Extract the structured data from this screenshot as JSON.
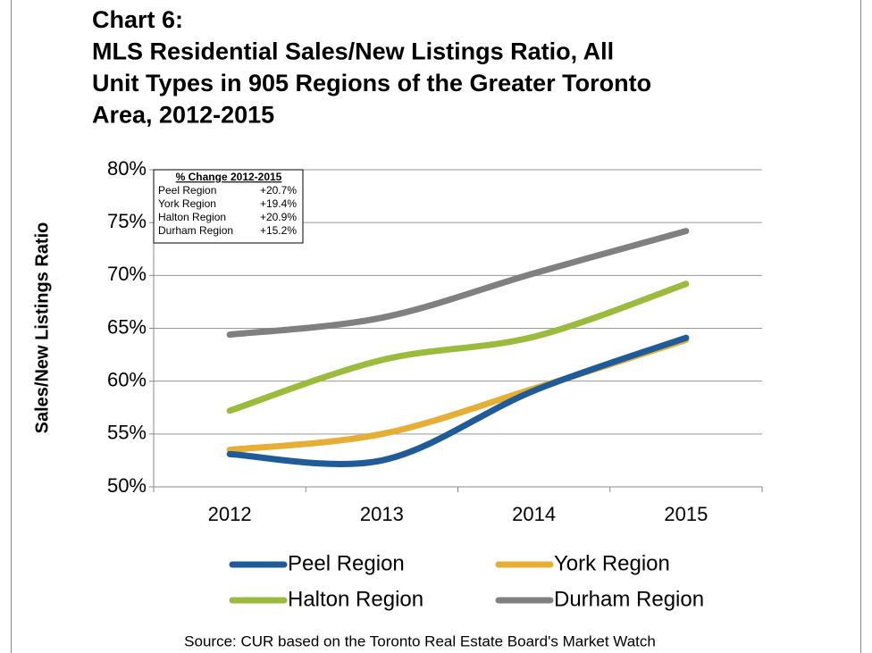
{
  "chart_data": {
    "type": "line",
    "title": [
      "Chart 6:",
      "MLS Residential Sales/New Listings Ratio, All",
      "Unit Types in 905 Regions of the Greater Toronto",
      "Area, 2012-2015"
    ],
    "y_label": "Sales/New Listings Ratio",
    "source": "Source: CUR based on the Toronto Real Estate Board's Market Watch",
    "categories": [
      "2012",
      "2013",
      "2014",
      "2015"
    ],
    "series": [
      {
        "name": "Peel Region",
        "color": "#1f5b99",
        "values": [
          53.1,
          52.5,
          59.1,
          64.1
        ]
      },
      {
        "name": "York Region",
        "color": "#e6ae35",
        "values": [
          53.5,
          55.0,
          59.3,
          63.9
        ]
      },
      {
        "name": "Halton Region",
        "color": "#9bbb3c",
        "values": [
          57.2,
          62.0,
          64.2,
          69.2
        ]
      },
      {
        "name": "Durham Region",
        "color": "#808080",
        "values": [
          64.4,
          66.0,
          70.2,
          74.2
        ]
      }
    ],
    "ylim": [
      50,
      80
    ],
    "yticks": [
      {
        "value": 50,
        "label": "50%"
      },
      {
        "value": 55,
        "label": "55%"
      },
      {
        "value": 60,
        "label": "60%"
      },
      {
        "value": 65,
        "label": "65%"
      },
      {
        "value": 70,
        "label": "70%"
      },
      {
        "value": 75,
        "label": "75%"
      },
      {
        "value": 80,
        "label": "80%"
      }
    ],
    "grid": true,
    "annotation": {
      "title": "% Change 2012-2015",
      "rows": [
        {
          "name": "Peel Region",
          "value": "+20.7%"
        },
        {
          "name": "York Region",
          "value": "+19.4%"
        },
        {
          "name": "Halton Region",
          "value": "+20.9%"
        },
        {
          "name": "Durham Region",
          "value": "+15.2%"
        }
      ]
    }
  }
}
